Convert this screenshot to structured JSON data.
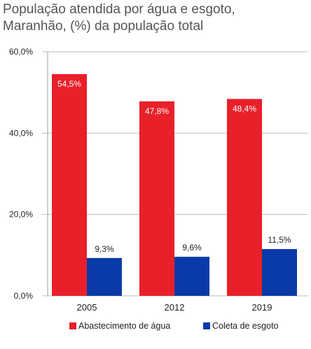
{
  "chart_data": {
    "type": "bar",
    "title_lines": [
      "População atendida por água e esgoto,",
      "Maranhão, (%) da população total"
    ],
    "categories": [
      "2005",
      "2012",
      "2019"
    ],
    "series": [
      {
        "name": "Abastecimento de água",
        "values": [
          54.5,
          47.8,
          48.4
        ],
        "labels": [
          "54,5%",
          "47,8%",
          "48,4%"
        ],
        "color": "#e8202a"
      },
      {
        "name": "Coleta de esgoto",
        "values": [
          9.3,
          9.6,
          11.5
        ],
        "labels": [
          "9,3%",
          "9,6%",
          "11,5%"
        ],
        "color": "#0a3aa8"
      }
    ],
    "ylim": [
      0,
      60
    ],
    "yticks": [
      0,
      20,
      40,
      60
    ],
    "ytick_labels": [
      "0,0%",
      "20,0%",
      "40,0%",
      "60,0%"
    ],
    "grid": true,
    "legend_position": "bottom"
  }
}
